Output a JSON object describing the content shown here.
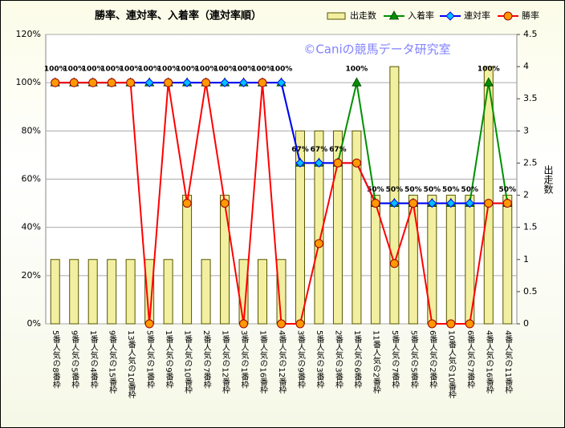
{
  "chart_data": {
    "type": "combo",
    "title": "勝率、連対率、入着率（連対率順）",
    "annotation": "©Caniの競馬データ研究室",
    "y2label": "出走数",
    "categories": [
      "5番人気の8番枠",
      "9番人気の5番枠",
      "1番人気の4番枠",
      "9番人気の15番枠",
      "13番人気の10番枠",
      "5番人気の1番枠",
      "1番人気の9番枠",
      "1番人気の10番枠",
      "2番人気の7番枠",
      "1番人気の12番枠",
      "3番人気の1番枠",
      "1番人気の16番枠",
      "4番人気の12番枠",
      "3番人気の9番枠",
      "5番人気の3番枠",
      "2番人気の3番枠",
      "1番人気の6番枠",
      "11番人気の2番枠",
      "5番人気の7番枠",
      "5番人気の5番枠",
      "6番人気の2番枠",
      "10番人気の10番枠",
      "6番人気の7番枠",
      "4番人気の16番枠",
      "4番人気の11番枠"
    ],
    "series": [
      {
        "name": "出走数",
        "type": "bar",
        "axis": "y2",
        "color": "#f2f0a0",
        "values": [
          1,
          1,
          1,
          1,
          1,
          1,
          1,
          2,
          1,
          2,
          1,
          1,
          1,
          3,
          3,
          3,
          3,
          2,
          4,
          2,
          2,
          2,
          2,
          4,
          2
        ]
      },
      {
        "name": "入着率",
        "type": "line",
        "marker": "triangle",
        "color": "#009000",
        "values": [
          100,
          100,
          100,
          100,
          100,
          100,
          100,
          100,
          100,
          100,
          100,
          100,
          100,
          66.7,
          66.7,
          66.7,
          100,
          50,
          50,
          50,
          50,
          50,
          50,
          100,
          50
        ],
        "value_labels": [
          "100%",
          "100%",
          "100%",
          "100%",
          "100%",
          "100%",
          "100%",
          "100%",
          "100%",
          "100%",
          "100%",
          "100%",
          "100%",
          "67%",
          "67%",
          "67%",
          "100%",
          "50%",
          "50%",
          "50%",
          "50%",
          "50%",
          "50%",
          "100%",
          "50%"
        ]
      },
      {
        "name": "連対率",
        "type": "line",
        "marker": "diamond",
        "color": "#0000ff",
        "values": [
          100,
          100,
          100,
          100,
          100,
          100,
          100,
          100,
          100,
          100,
          100,
          100,
          100,
          66.7,
          66.7,
          66.7,
          66.7,
          50,
          50,
          50,
          50,
          50,
          50,
          50,
          50
        ]
      },
      {
        "name": "勝率",
        "type": "line",
        "marker": "circle",
        "color": "#ff0000",
        "values": [
          100,
          100,
          100,
          100,
          100,
          0,
          100,
          50,
          100,
          50,
          0,
          100,
          0,
          0,
          33.3,
          66.7,
          66.7,
          50,
          25,
          50,
          0,
          0,
          0,
          50,
          50
        ]
      }
    ],
    "ylim": [
      0,
      120
    ],
    "yticks": [
      {
        "value": 0,
        "label": "0%"
      },
      {
        "value": 20,
        "label": "20%"
      },
      {
        "value": 40,
        "label": "40%"
      },
      {
        "value": 60,
        "label": "60%"
      },
      {
        "value": 80,
        "label": "80%"
      },
      {
        "value": 100,
        "label": "100%"
      },
      {
        "value": 120,
        "label": "120%"
      }
    ],
    "y2lim": [
      0,
      4.5
    ],
    "y2ticks": [
      0,
      0.5,
      1,
      1.5,
      2,
      2.5,
      3,
      3.5,
      4,
      4.5
    ],
    "grid": true,
    "legend": "top-right"
  }
}
